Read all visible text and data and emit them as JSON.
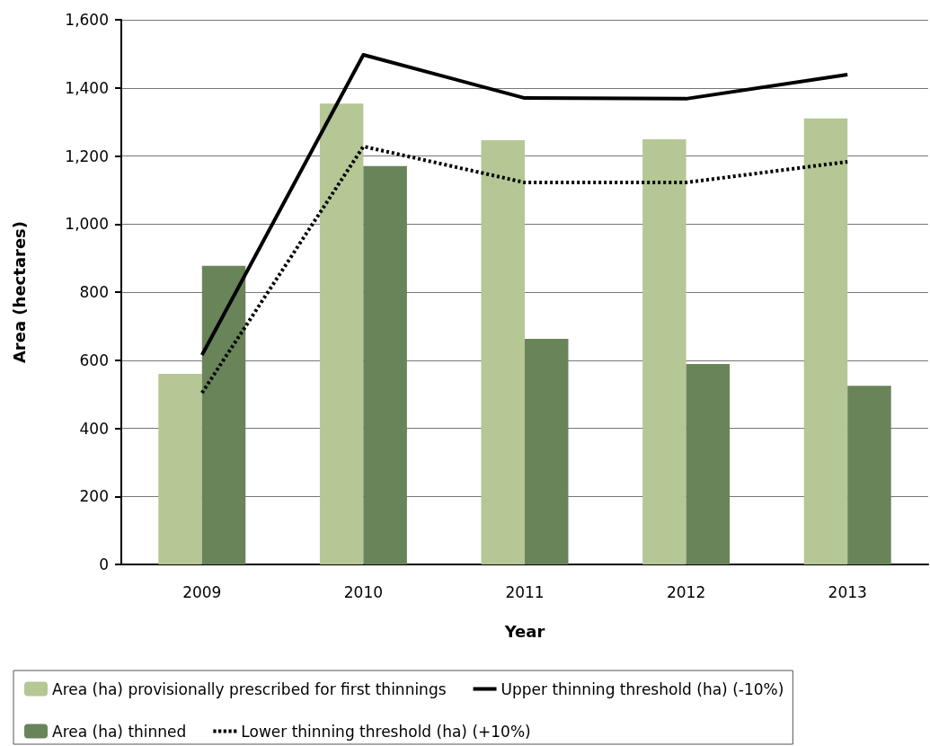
{
  "chart_data": {
    "type": "bar",
    "xlabel": "Year",
    "ylabel": "Area (hectares)",
    "categories": [
      "2009",
      "2010",
      "2011",
      "2012",
      "2013"
    ],
    "series": [
      {
        "name": "Area (ha) provisionally prescribed for first thinnings",
        "color": "#b5c795",
        "values": [
          560,
          1354,
          1246,
          1249,
          1310
        ]
      },
      {
        "name": "Upper thinning threshold (ha) (-10%)",
        "type": "line",
        "line_style": "solid",
        "color": "#000000",
        "values": [
          615,
          1497,
          1370,
          1368,
          1439
        ]
      },
      {
        "name": "Area (ha) thinned",
        "color": "#6a845a",
        "values": [
          877,
          1170,
          663,
          589,
          525
        ]
      },
      {
        "name": "Lower thinning threshold (ha) (+10%)",
        "type": "line",
        "line_style": "dotted",
        "color": "#000000",
        "values": [
          504,
          1228,
          1122,
          1122,
          1183
        ]
      }
    ],
    "ylim": [
      0,
      1600
    ],
    "yticks": [
      0,
      200,
      400,
      600,
      800,
      {
        "value": 1000,
        "label": "1,000"
      },
      {
        "value": 1200,
        "label": "1,200"
      },
      {
        "value": 1400,
        "label": "1,400"
      },
      {
        "value": 1600,
        "label": "1,600"
      }
    ],
    "grid": "y",
    "legend": "bottom",
    "marker": "none"
  }
}
